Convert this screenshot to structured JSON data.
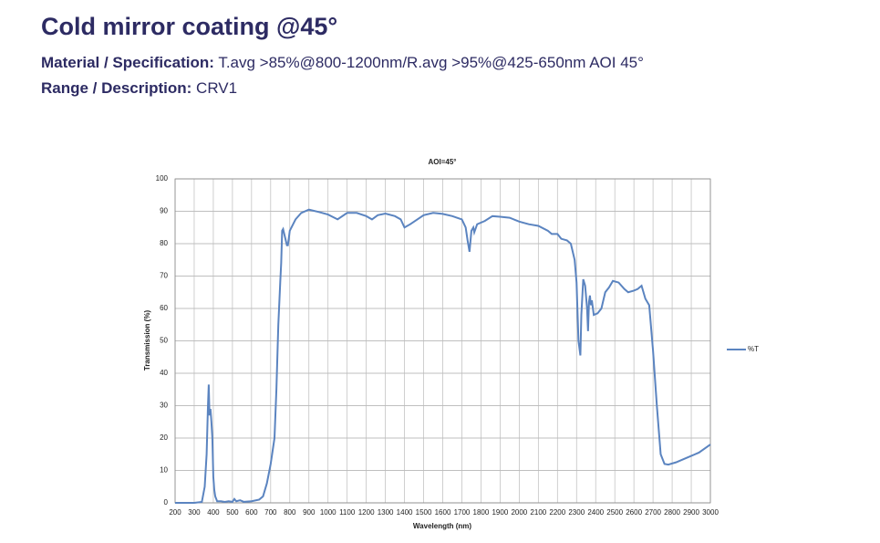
{
  "page": {
    "title": "Cold mirror coating @45°",
    "spec_label": "Material / Specification:",
    "spec_value": "T.avg >85%@800-1200nm/R.avg >95%@425-650nm AOI 45°",
    "range_label": "Range / Description:",
    "range_value": "CRV1"
  },
  "chart_data": {
    "type": "line",
    "title": "AOI=45°",
    "x_label": "Wavelength (nm)",
    "y_label": "Transmission (%)",
    "xlim": [
      200,
      3000
    ],
    "xticks": [
      200,
      300,
      400,
      500,
      600,
      700,
      800,
      900,
      1000,
      1100,
      1200,
      1300,
      1400,
      1500,
      1600,
      1700,
      1800,
      1900,
      2000,
      2100,
      2200,
      2300,
      2400,
      2500,
      2600,
      2700,
      2800,
      2900,
      3000
    ],
    "ylim": [
      0,
      100
    ],
    "yticks": [
      0,
      10,
      20,
      30,
      40,
      50,
      60,
      70,
      80,
      90,
      100
    ],
    "grid": true,
    "legend": "right",
    "x": [
      200,
      300,
      340,
      355,
      365,
      372,
      376,
      380,
      385,
      390,
      395,
      400,
      405,
      410,
      420,
      440,
      460,
      480,
      500,
      510,
      520,
      540,
      560,
      600,
      640,
      660,
      680,
      700,
      710,
      720,
      730,
      740,
      750,
      755,
      760,
      765,
      775,
      785,
      790,
      800,
      830,
      860,
      900,
      950,
      1000,
      1050,
      1100,
      1150,
      1200,
      1230,
      1260,
      1300,
      1350,
      1380,
      1400,
      1430,
      1500,
      1550,
      1600,
      1650,
      1700,
      1720,
      1730,
      1740,
      1750,
      1760,
      1765,
      1780,
      1820,
      1860,
      1900,
      1950,
      2000,
      2050,
      2100,
      2150,
      2170,
      2200,
      2220,
      2250,
      2270,
      2290,
      2300,
      2310,
      2320,
      2325,
      2335,
      2345,
      2355,
      2360,
      2365,
      2370,
      2375,
      2380,
      2390,
      2410,
      2430,
      2450,
      2470,
      2490,
      2520,
      2550,
      2570,
      2600,
      2620,
      2640,
      2660,
      2680,
      2700,
      2720,
      2740,
      2760,
      2780,
      2820,
      2880,
      2940,
      3000
    ],
    "series": [
      {
        "name": "%T",
        "color": "#5b84c0",
        "values": [
          0,
          0,
          0.3,
          5,
          15,
          30,
          36.5,
          27,
          29,
          25,
          20,
          8,
          4,
          2,
          0.5,
          0.5,
          0.3,
          0.5,
          0.3,
          1.2,
          0.5,
          0.8,
          0.3,
          0.5,
          1,
          2,
          6,
          12,
          16,
          20,
          35,
          55,
          68,
          74,
          84,
          84.5,
          82,
          79.5,
          79.5,
          84,
          87.5,
          89.5,
          90.5,
          89.8,
          89,
          87.5,
          89.5,
          89.5,
          88.5,
          87.5,
          88.8,
          89.3,
          88.5,
          87.5,
          85,
          86,
          88.8,
          89.5,
          89.2,
          88.5,
          87.5,
          85,
          81,
          77.5,
          84,
          85,
          83.5,
          86,
          87,
          88.5,
          88.3,
          88,
          86.8,
          86,
          85.5,
          84,
          83,
          83,
          81.5,
          81,
          80,
          75,
          68,
          50,
          45.5,
          58,
          69,
          67,
          60,
          53,
          62,
          64,
          61,
          62.5,
          58,
          58.5,
          60,
          65,
          66.5,
          68.5,
          68,
          66,
          65,
          65.5,
          66,
          67,
          63,
          61,
          47,
          30,
          15,
          12,
          11.8,
          12.5,
          14,
          15.5,
          18
        ]
      }
    ]
  }
}
